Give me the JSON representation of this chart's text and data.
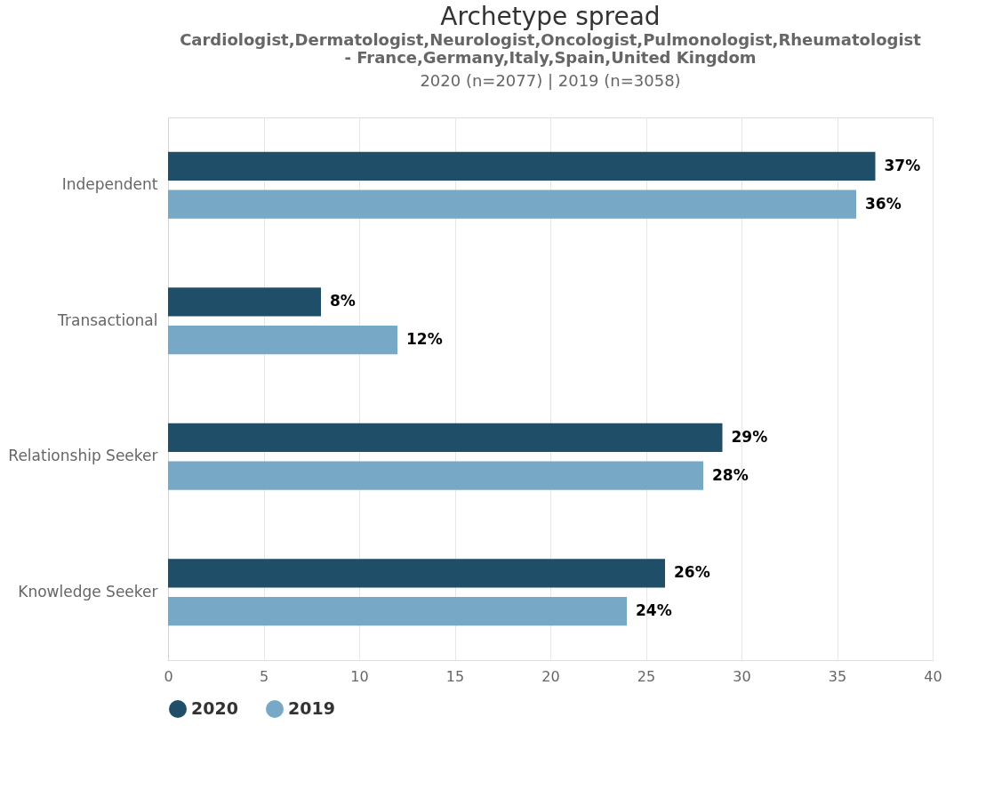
{
  "chart_data": {
    "type": "bar",
    "orientation": "horizontal",
    "title": "Archetype spread",
    "subtitle": "Cardiologist,Dermatologist,Neurologist,Oncologist,Pulmonologist,Rheumatologist - France,Germany,Italy,Spain,United Kingdom",
    "annotations": [
      "2020 (n=2077) | 2019 (n=3058)"
    ],
    "categories": [
      "Independent",
      "Transactional",
      "Relationship Seeker",
      "Knowledge Seeker"
    ],
    "series": [
      {
        "name": "2020",
        "color": "#1f4e69",
        "values": [
          37,
          8,
          29,
          26
        ],
        "value_labels": [
          "37%",
          "8%",
          "29%",
          "26%"
        ]
      },
      {
        "name": "2019",
        "color": "#77a9c7",
        "values": [
          36,
          12,
          28,
          24
        ],
        "value_labels": [
          "36%",
          "12%",
          "28%",
          "24%"
        ]
      }
    ],
    "xlim": [
      0,
      40
    ],
    "xticks": [
      0,
      5,
      10,
      15,
      20,
      25,
      30,
      35,
      40
    ],
    "grid": "x",
    "legend": "bottom"
  }
}
